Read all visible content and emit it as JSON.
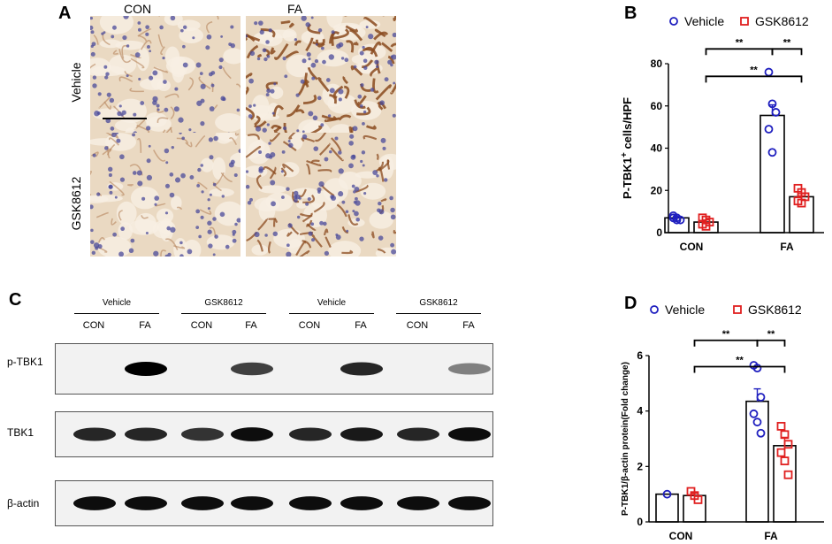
{
  "panels": {
    "A": "A",
    "B": "B",
    "C": "C",
    "D": "D"
  },
  "panelA": {
    "columns": [
      "CON",
      "FA"
    ],
    "rows": [
      "Vehicle",
      "GSK8612"
    ]
  },
  "panelC": {
    "groups": [
      "Vehicle",
      "GSK8612",
      "Vehicle",
      "GSK8612"
    ],
    "lanes": [
      "CON",
      "FA",
      "CON",
      "FA",
      "CON",
      "FA",
      "CON",
      "FA"
    ],
    "blots": [
      "p-TBK1",
      "TBK1",
      "β-actin"
    ],
    "band_intensity": {
      "p-TBK1": [
        0,
        1.0,
        0,
        0.75,
        0,
        0.85,
        0,
        0.5
      ],
      "TBK1": [
        0.85,
        0.85,
        0.8,
        0.95,
        0.85,
        0.9,
        0.85,
        0.95
      ],
      "β-actin": [
        0.95,
        0.95,
        0.95,
        0.95,
        0.95,
        0.95,
        0.95,
        0.95
      ]
    }
  },
  "chart_data": [
    {
      "panel": "B",
      "type": "bar",
      "categories": [
        "CON",
        "FA"
      ],
      "ylabel_main": "P-TBK1",
      "ylabel_sup": "+",
      "ylabel_rest": " cells/HPF",
      "ylim": [
        0,
        80
      ],
      "yticks": [
        0,
        20,
        40,
        60,
        80
      ],
      "legend_placement": "top",
      "series": [
        {
          "name": "Vehicle",
          "color": "#1f1fbf",
          "marker": "circle",
          "values": [
            7,
            55.5
          ],
          "errors": [
            0.8,
            5
          ],
          "points": [
            [
              8,
              7,
              6,
              7,
              6
            ],
            [
              76,
              61,
              57,
              49,
              38
            ]
          ]
        },
        {
          "name": "GSK8612",
          "color": "#e02020",
          "marker": "square",
          "values": [
            5,
            17
          ],
          "errors": [
            1,
            1.5
          ],
          "points": [
            [
              7,
              6,
              5,
              4,
              3
            ],
            [
              21,
              19,
              17,
              15,
              14
            ]
          ]
        }
      ],
      "significance": [
        {
          "label": "**",
          "from": [
            0,
            0.5
          ],
          "to": [
            1,
            -0.5
          ],
          "y": 87
        },
        {
          "label": "**",
          "from": [
            1,
            -0.5
          ],
          "to": [
            1,
            0.5
          ],
          "y": 87
        },
        {
          "label": "**",
          "from": [
            0,
            0.5
          ],
          "to": [
            1,
            0.5
          ],
          "y": 74
        }
      ]
    },
    {
      "panel": "D",
      "type": "bar",
      "categories": [
        "CON",
        "FA"
      ],
      "ylabel_main": "P-TBK1/β-actin protein(Fold change)",
      "ylabel_sup": "",
      "ylabel_rest": "",
      "ylim": [
        0,
        6
      ],
      "yticks": [
        0,
        2,
        4,
        6
      ],
      "legend_placement": "top",
      "series": [
        {
          "name": "Vehicle",
          "color": "#1f1fbf",
          "marker": "circle",
          "values": [
            1.0,
            4.35
          ],
          "errors": [
            0,
            0.45
          ],
          "points": [
            [
              1.0
            ],
            [
              5.65,
              5.55,
              4.5,
              3.9,
              3.6,
              3.2
            ]
          ]
        },
        {
          "name": "GSK8612",
          "color": "#e02020",
          "marker": "square",
          "values": [
            0.95,
            2.75
          ],
          "errors": [
            0.08,
            0.3
          ],
          "points": [
            [
              1.1,
              0.95,
              0.8
            ],
            [
              3.45,
              3.15,
              2.8,
              2.5,
              2.2,
              1.7
            ]
          ]
        }
      ],
      "significance": [
        {
          "label": "**",
          "from": [
            0,
            0.5
          ],
          "to": [
            1,
            -0.5
          ],
          "y": 6.55
        },
        {
          "label": "**",
          "from": [
            1,
            -0.5
          ],
          "to": [
            1,
            0.5
          ],
          "y": 6.55
        },
        {
          "label": "**",
          "from": [
            0,
            0.5
          ],
          "to": [
            1,
            0.5
          ],
          "y": 5.6
        }
      ]
    }
  ]
}
